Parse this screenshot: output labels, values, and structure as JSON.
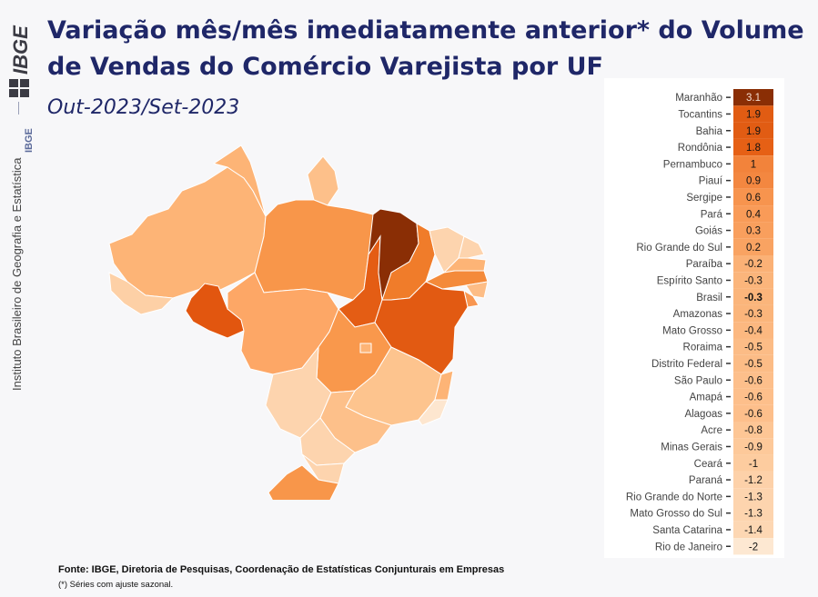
{
  "sidebar": {
    "logo": "IBGE",
    "short": "IBGE",
    "institution": "Instituto Brasileiro de Geografia e Estatística"
  },
  "header": {
    "title": "Variação mês/mês imediatamente anterior* do Volume de Vendas do Comércio Varejista por UF",
    "subtitle": "Out-2023/Set-2023"
  },
  "footer": {
    "source": "Fonte: IBGE, Diretoria de Pesquisas, Coordenação de Estatísticas Conjunturais em Empresas",
    "note": "(*) Séries com ajuste sazonal."
  },
  "colors": {
    "title": "#1f2768",
    "scale": [
      "#fde4c8",
      "#fdc28e",
      "#fd9f56",
      "#f27d2c",
      "#e05a10",
      "#8a2e05"
    ]
  },
  "chart_data": {
    "type": "heatmap",
    "title": "",
    "xlabel": "",
    "ylabel": "",
    "highlight": "Brasil",
    "categories": [
      "Maranhão",
      "Tocantins",
      "Bahia",
      "Rondônia",
      "Pernambuco",
      "Piauí",
      "Sergipe",
      "Pará",
      "Goiás",
      "Rio Grande do Sul",
      "Paraíba",
      "Espírito Santo",
      "Brasil",
      "Amazonas",
      "Mato Grosso",
      "Roraima",
      "Distrito Federal",
      "São Paulo",
      "Amapá",
      "Alagoas",
      "Acre",
      "Minas Gerais",
      "Ceará",
      "Paraná",
      "Rio Grande do Norte",
      "Mato Grosso do Sul",
      "Santa Catarina",
      "Rio de Janeiro"
    ],
    "values": [
      "3.1",
      "1.9",
      "1.9",
      "1.8",
      "1",
      "0.9",
      "0.6",
      "0.4",
      "0.3",
      "0.2",
      "-0.2",
      "-0.3",
      "-0.3",
      "-0.3",
      "-0.4",
      "-0.5",
      "-0.5",
      "-0.6",
      "-0.6",
      "-0.6",
      "-0.8",
      "-0.9",
      "-1",
      "-1.2",
      "-1.3",
      "-1.3",
      "-1.4",
      "-2"
    ]
  }
}
